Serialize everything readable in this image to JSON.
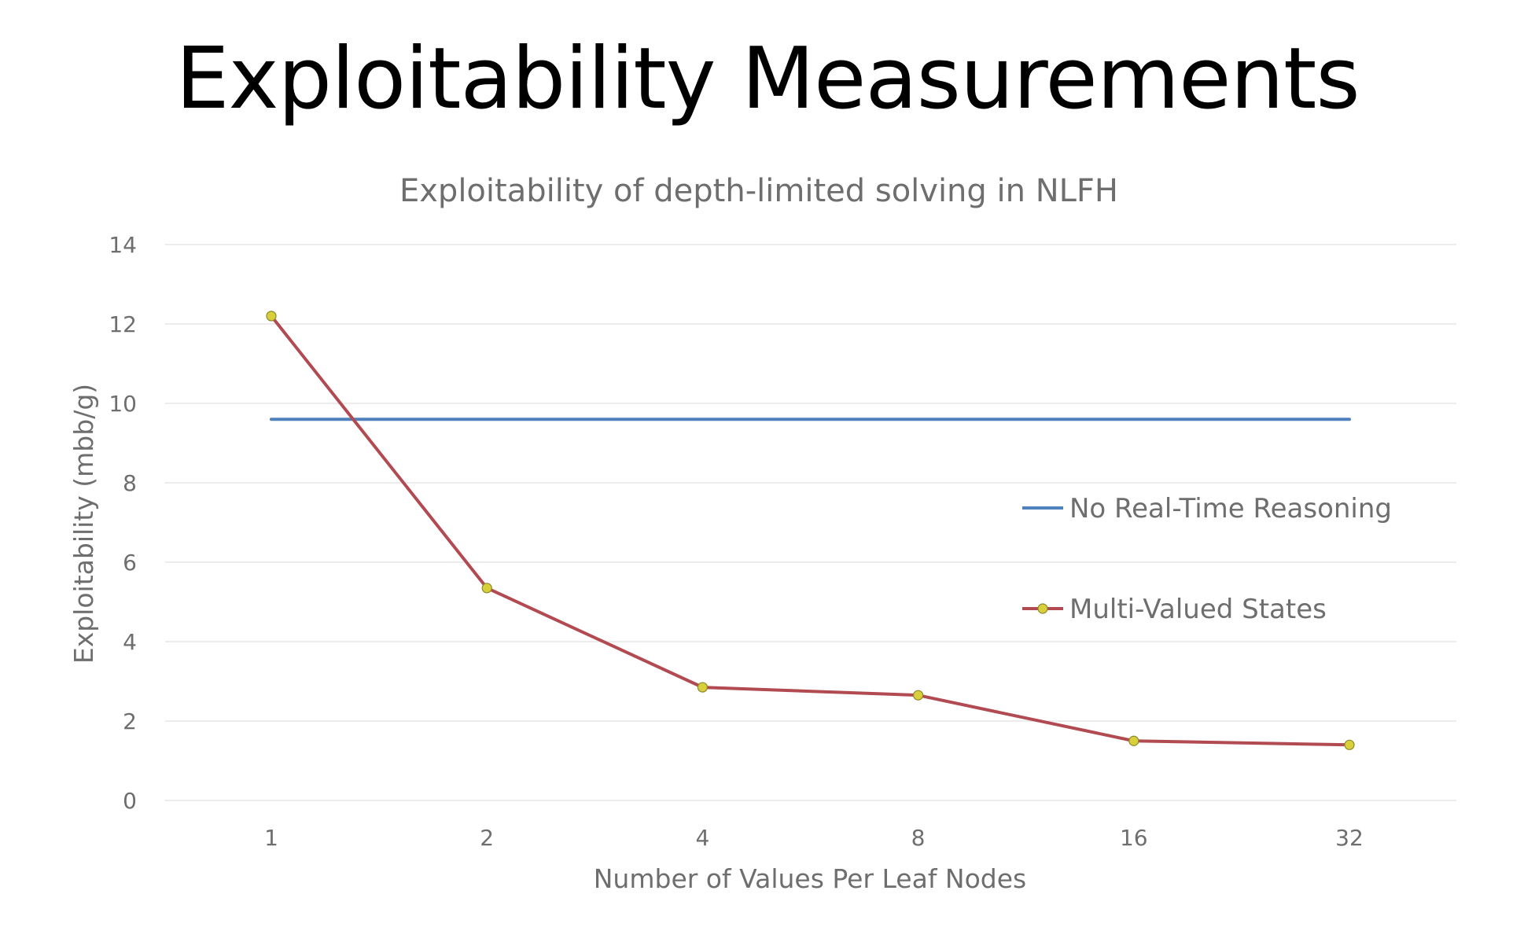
{
  "slide": {
    "title": "Exploitability Measurements"
  },
  "chart_data": {
    "type": "line",
    "title": "Exploitability of depth-limited solving in NLFH",
    "xlabel": "Number of Values Per Leaf Nodes",
    "ylabel": "Exploitability (mbb/g)",
    "categories": [
      "1",
      "2",
      "4",
      "8",
      "16",
      "32"
    ],
    "ylim": [
      0,
      14
    ],
    "yticks": [
      "0",
      "2",
      "4",
      "6",
      "8",
      "10",
      "12",
      "14"
    ],
    "grid": true,
    "legend_position": "right",
    "series": [
      {
        "name": "No Real-Time Reasoning",
        "values": [
          9.6,
          9.6,
          9.6,
          9.6,
          9.6,
          9.6
        ],
        "color": "#4f81bd",
        "markers": false
      },
      {
        "name": "Multi-Valued States",
        "values": [
          12.2,
          5.35,
          2.85,
          2.65,
          1.5,
          1.4
        ],
        "color": "#b24a52",
        "marker_color": "#d9cf3a",
        "markers": true
      }
    ]
  }
}
